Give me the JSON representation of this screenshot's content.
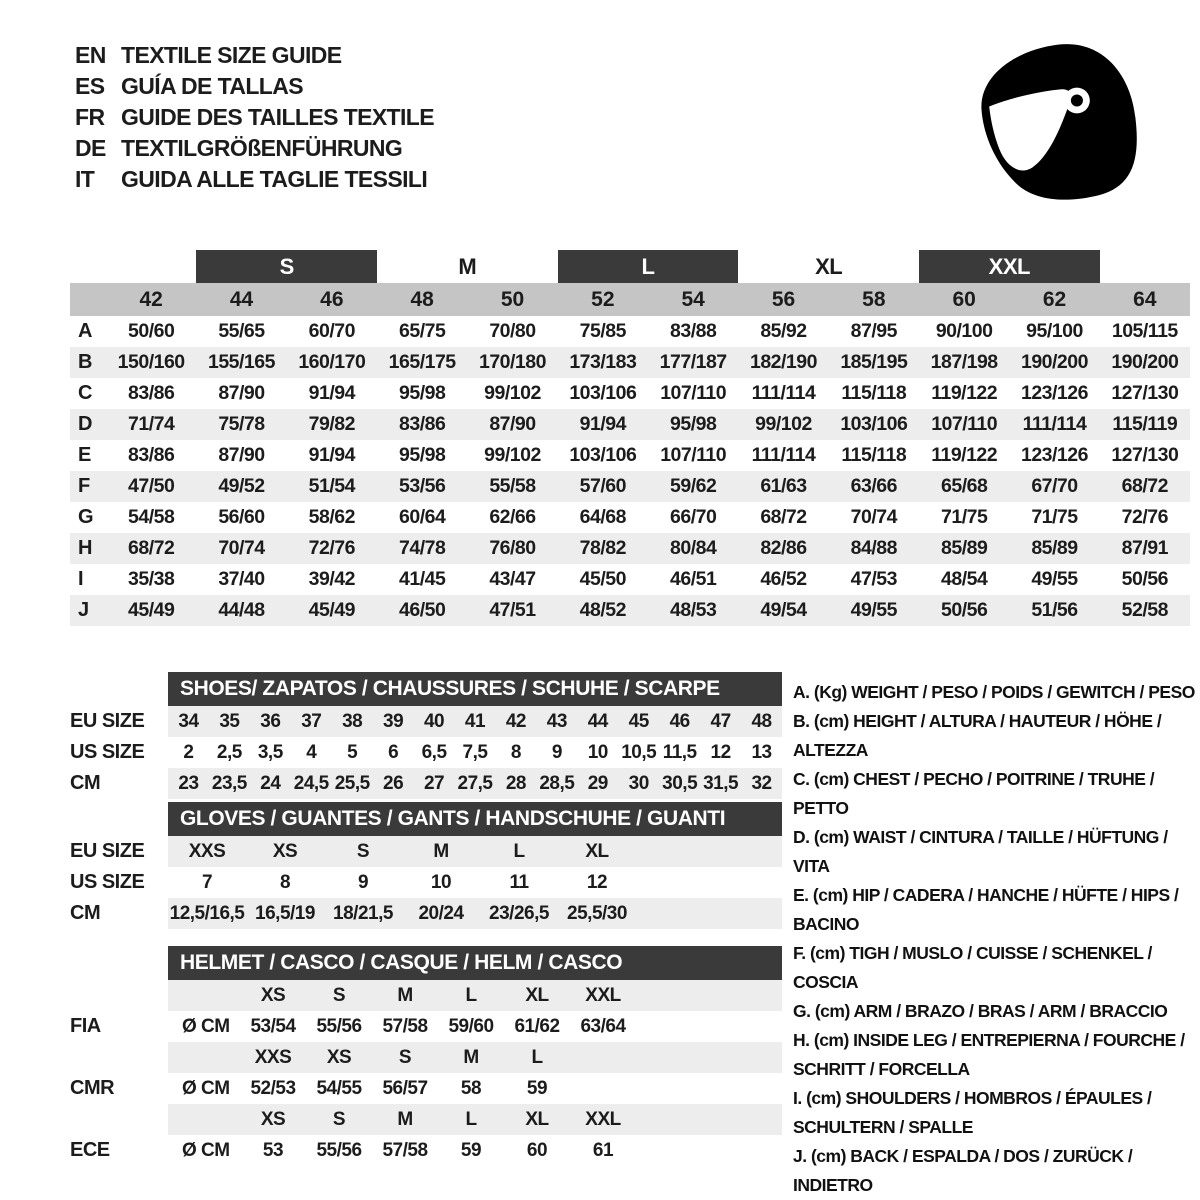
{
  "colors": {
    "dark_bar": "#3a3a3a",
    "size_band": "#c5c5c5",
    "row_stripe": "#ededed",
    "text": "#1c1c1c"
  },
  "header": {
    "icon": "racing-helmet-icon"
  },
  "languages": [
    {
      "code": "EN",
      "label": "TEXTILE SIZE GUIDE"
    },
    {
      "code": "ES",
      "label": "GUÍA DE TALLAS"
    },
    {
      "code": "FR",
      "label": "GUIDE DES TAILLES TEXTILE"
    },
    {
      "code": "DE",
      "label": "TEXTILGRÖßENFÜHRUNG"
    },
    {
      "code": "IT",
      "label": "GUIDA ALLE TAGLIE TESSILI"
    }
  ],
  "main_table": {
    "size_groups": [
      {
        "label": "S",
        "boxed": true
      },
      {
        "label": "M",
        "boxed": false
      },
      {
        "label": "L",
        "boxed": true
      },
      {
        "label": "XL",
        "boxed": false
      },
      {
        "label": "XXL",
        "boxed": true
      }
    ],
    "sizes": [
      "42",
      "44",
      "46",
      "48",
      "50",
      "52",
      "54",
      "56",
      "58",
      "60",
      "62",
      "64"
    ],
    "rows": [
      {
        "letter": "A",
        "values": [
          "50/60",
          "55/65",
          "60/70",
          "65/75",
          "70/80",
          "75/85",
          "83/88",
          "85/92",
          "87/95",
          "90/100",
          "95/100",
          "105/115"
        ]
      },
      {
        "letter": "B",
        "values": [
          "150/160",
          "155/165",
          "160/170",
          "165/175",
          "170/180",
          "173/183",
          "177/187",
          "182/190",
          "185/195",
          "187/198",
          "190/200",
          "190/200"
        ]
      },
      {
        "letter": "C",
        "values": [
          "83/86",
          "87/90",
          "91/94",
          "95/98",
          "99/102",
          "103/106",
          "107/110",
          "111/114",
          "115/118",
          "119/122",
          "123/126",
          "127/130"
        ]
      },
      {
        "letter": "D",
        "values": [
          "71/74",
          "75/78",
          "79/82",
          "83/86",
          "87/90",
          "91/94",
          "95/98",
          "99/102",
          "103/106",
          "107/110",
          "111/114",
          "115/119"
        ]
      },
      {
        "letter": "E",
        "values": [
          "83/86",
          "87/90",
          "91/94",
          "95/98",
          "99/102",
          "103/106",
          "107/110",
          "111/114",
          "115/118",
          "119/122",
          "123/126",
          "127/130"
        ]
      },
      {
        "letter": "F",
        "values": [
          "47/50",
          "49/52",
          "51/54",
          "53/56",
          "55/58",
          "57/60",
          "59/62",
          "61/63",
          "63/66",
          "65/68",
          "67/70",
          "68/72"
        ]
      },
      {
        "letter": "G",
        "values": [
          "54/58",
          "56/60",
          "58/62",
          "60/64",
          "62/66",
          "64/68",
          "66/70",
          "68/72",
          "70/74",
          "71/75",
          "71/75",
          "72/76"
        ]
      },
      {
        "letter": "H",
        "values": [
          "68/72",
          "70/74",
          "72/76",
          "74/78",
          "76/80",
          "78/82",
          "80/84",
          "82/86",
          "84/88",
          "85/89",
          "85/89",
          "87/91"
        ]
      },
      {
        "letter": "I",
        "values": [
          "35/38",
          "37/40",
          "39/42",
          "41/45",
          "43/47",
          "45/50",
          "46/51",
          "46/52",
          "47/53",
          "48/54",
          "49/55",
          "50/56"
        ]
      },
      {
        "letter": "J",
        "values": [
          "45/49",
          "44/48",
          "45/49",
          "46/50",
          "47/51",
          "48/52",
          "48/53",
          "49/54",
          "49/55",
          "50/56",
          "51/56",
          "52/58"
        ]
      }
    ]
  },
  "shoes": {
    "title": "SHOES/ ZAPATOS / CHAUSSURES / SCHUHE / SCARPE",
    "rows": [
      {
        "label": "EU SIZE",
        "striped": true,
        "values": [
          "34",
          "35",
          "36",
          "37",
          "38",
          "39",
          "40",
          "41",
          "42",
          "43",
          "44",
          "45",
          "46",
          "47",
          "48"
        ]
      },
      {
        "label": "US SIZE",
        "striped": false,
        "values": [
          "2",
          "2,5",
          "3,5",
          "4",
          "5",
          "6",
          "6,5",
          "7,5",
          "8",
          "9",
          "10",
          "10,5",
          "11,5",
          "12",
          "13"
        ]
      },
      {
        "label": "CM",
        "striped": true,
        "values": [
          "23",
          "23,5",
          "24",
          "24,5",
          "25,5",
          "26",
          "27",
          "27,5",
          "28",
          "28,5",
          "29",
          "30",
          "30,5",
          "31,5",
          "32"
        ]
      }
    ]
  },
  "gloves": {
    "title": "GLOVES / GUANTES / GANTS / HANDSCHUHE / GUANTI",
    "rows": [
      {
        "label": "EU SIZE",
        "striped": true,
        "values": [
          "XXS",
          "XS",
          "S",
          "M",
          "L",
          "XL"
        ]
      },
      {
        "label": "US SIZE",
        "striped": false,
        "values": [
          "7",
          "8",
          "9",
          "10",
          "11",
          "12"
        ]
      },
      {
        "label": "CM",
        "striped": true,
        "values": [
          "12,5/16,5",
          "16,5/19",
          "18/21,5",
          "20/24",
          "23/26,5",
          "25,5/30"
        ]
      }
    ]
  },
  "helmet": {
    "title": "HELMET / CASCO / CASQUE / HELM / CASCO",
    "groups": [
      {
        "label": "FIA",
        "prefix": "Ø CM",
        "sizes": [
          "XS",
          "S",
          "M",
          "L",
          "XL",
          "XXL"
        ],
        "values": [
          "53/54",
          "55/56",
          "57/58",
          "59/60",
          "61/62",
          "63/64"
        ]
      },
      {
        "label": "CMR",
        "prefix": "Ø CM",
        "sizes": [
          "XXS",
          "XS",
          "S",
          "M",
          "L"
        ],
        "values": [
          "52/53",
          "54/55",
          "56/57",
          "58",
          "59"
        ]
      },
      {
        "label": "ECE",
        "prefix": "Ø CM",
        "sizes": [
          "XS",
          "S",
          "M",
          "L",
          "XL",
          "XXL"
        ],
        "values": [
          "53",
          "55/56",
          "57/58",
          "59",
          "60",
          "61"
        ]
      }
    ]
  },
  "legend": {
    "items": [
      "A. (Kg) WEIGHT / PESO / POIDS / GEWITCH / PESO",
      "B. (cm) HEIGHT / ALTURA / HAUTEUR / HÖHE / ALTEZZA",
      "C. (cm) CHEST / PECHO / POITRINE / TRUHE / PETTO",
      "D. (cm) WAIST / CINTURA / TAILLE / HÜFTUNG / VITA",
      "E. (cm) HIP / CADERA / HANCHE / HÜFTE / HIPS / BACINO",
      "F. (cm) TIGH / MUSLO / CUISSE / SCHENKEL / COSCIA",
      "G. (cm) ARM / BRAZO / BRAS / ARM / BRACCIO",
      "H. (cm) INSIDE LEG / ENTREPIERNA / FOURCHE / SCHRITT / FORCELLA",
      "I. (cm) SHOULDERS / HOMBROS / ÉPAULES / SCHULTERN / SPALLE",
      "J. (cm) BACK / ESPALDA / DOS / ZURÜCK / INDIETRO"
    ]
  }
}
